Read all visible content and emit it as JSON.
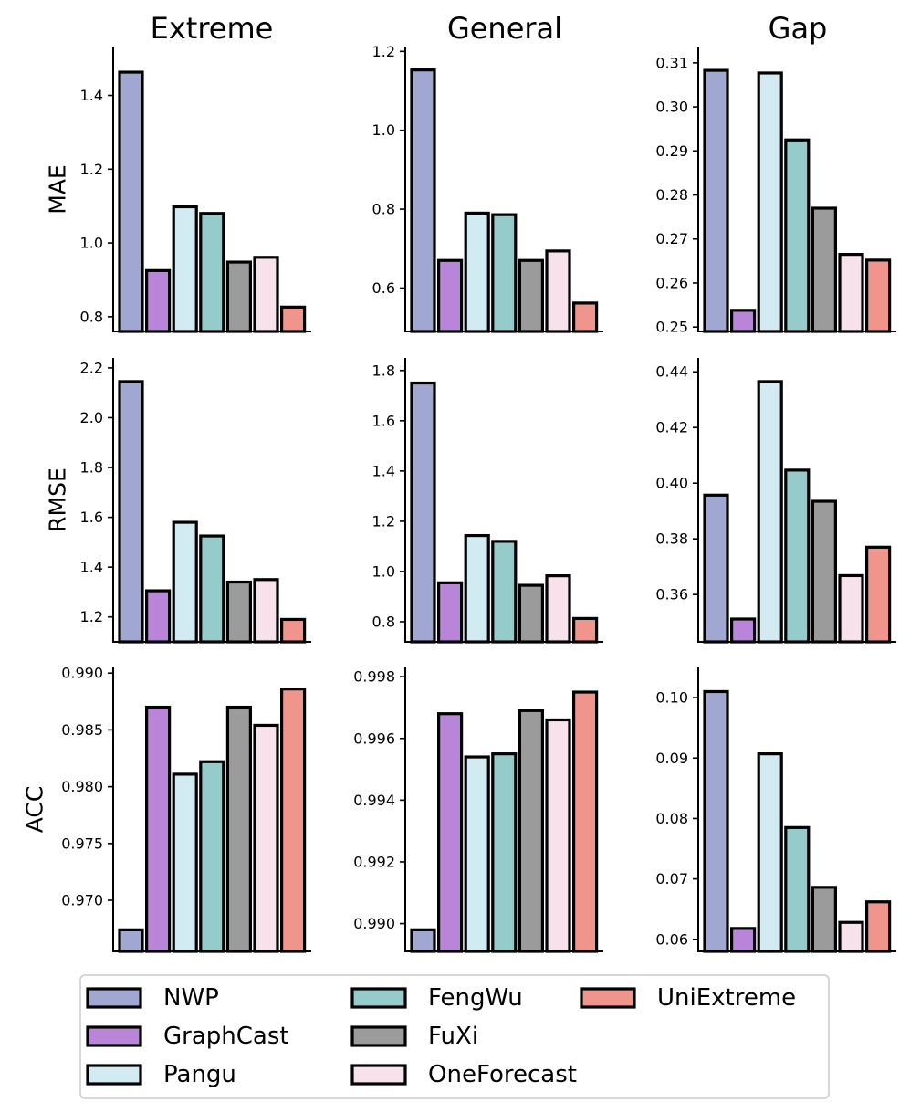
{
  "chart_data": {
    "type": "bar",
    "categories": [
      "NWP",
      "GraphCast",
      "Pangu",
      "FengWu",
      "FuXi",
      "OneForecast",
      "UniExtreme"
    ],
    "colors": [
      "#a0a8d2",
      "#b985d8",
      "#d2eaf1",
      "#95cbcb",
      "#9b9b9b",
      "#f7e2ec",
      "#ef958b"
    ],
    "columns": [
      "Extreme",
      "General",
      "Gap"
    ],
    "rows": [
      "MAE",
      "RMSE",
      "ACC"
    ],
    "legend_position": "bottom",
    "panels": [
      {
        "row": "MAE",
        "column": "Extreme",
        "ylim": [
          0.76,
          1.53
        ],
        "ticks": [
          0.8,
          1.0,
          1.2,
          1.4
        ],
        "tick_labels": [
          "0.8",
          "1.0",
          "1.2",
          "1.4"
        ],
        "values": [
          1.463,
          0.925,
          1.098,
          1.08,
          0.948,
          0.961,
          0.826
        ]
      },
      {
        "row": "MAE",
        "column": "General",
        "ylim": [
          0.49,
          1.21
        ],
        "ticks": [
          0.6,
          0.8,
          1.0,
          1.2
        ],
        "tick_labels": [
          "0.6",
          "0.8",
          "1.0",
          "1.2"
        ],
        "values": [
          1.153,
          0.67,
          0.79,
          0.786,
          0.67,
          0.694,
          0.562
        ]
      },
      {
        "row": "MAE",
        "column": "Gap",
        "ylim": [
          0.249,
          0.3135
        ],
        "ticks": [
          0.25,
          0.26,
          0.27,
          0.28,
          0.29,
          0.3,
          0.31
        ],
        "tick_labels": [
          "0.25",
          "0.26",
          "0.27",
          "0.28",
          "0.29",
          "0.30",
          "0.31"
        ],
        "values": [
          0.3083,
          0.2538,
          0.3077,
          0.2925,
          0.277,
          0.2665,
          0.2652
        ]
      },
      {
        "row": "RMSE",
        "column": "Extreme",
        "ylim": [
          1.1,
          2.24
        ],
        "ticks": [
          1.2,
          1.4,
          1.6,
          1.8,
          2.0,
          2.2
        ],
        "tick_labels": [
          "1.2",
          "1.4",
          "1.6",
          "1.8",
          "2.0",
          "2.2"
        ],
        "values": [
          2.145,
          1.305,
          1.58,
          1.525,
          1.34,
          1.35,
          1.19
        ]
      },
      {
        "row": "RMSE",
        "column": "General",
        "ylim": [
          0.72,
          1.85
        ],
        "ticks": [
          0.8,
          1.0,
          1.2,
          1.4,
          1.6,
          1.8
        ],
        "tick_labels": [
          "0.8",
          "1.0",
          "1.2",
          "1.4",
          "1.6",
          "1.8"
        ],
        "values": [
          1.75,
          0.955,
          1.143,
          1.12,
          0.945,
          0.983,
          0.813
        ]
      },
      {
        "row": "RMSE",
        "column": "Gap",
        "ylim": [
          0.343,
          0.445
        ],
        "ticks": [
          0.36,
          0.38,
          0.4,
          0.42,
          0.44
        ],
        "tick_labels": [
          "0.36",
          "0.38",
          "0.40",
          "0.42",
          "0.44"
        ],
        "values": [
          0.3957,
          0.3512,
          0.4365,
          0.4047,
          0.3935,
          0.3668,
          0.377
        ]
      },
      {
        "row": "ACC",
        "column": "Extreme",
        "ylim": [
          0.9655,
          0.9905
        ],
        "ticks": [
          0.97,
          0.975,
          0.98,
          0.985,
          0.99
        ],
        "tick_labels": [
          "0.970",
          "0.975",
          "0.980",
          "0.985",
          "0.990"
        ],
        "values": [
          0.9674,
          0.987,
          0.9811,
          0.9822,
          0.987,
          0.9854,
          0.9886
        ]
      },
      {
        "row": "ACC",
        "column": "General",
        "ylim": [
          0.9891,
          0.9983
        ],
        "ticks": [
          0.99,
          0.992,
          0.994,
          0.996,
          0.998
        ],
        "tick_labels": [
          "0.990",
          "0.992",
          "0.994",
          "0.996",
          "0.998"
        ],
        "values": [
          0.9898,
          0.9968,
          0.9954,
          0.9955,
          0.9969,
          0.9966,
          0.9975
        ]
      },
      {
        "row": "ACC",
        "column": "Gap",
        "ylim": [
          0.058,
          0.105
        ],
        "ticks": [
          0.06,
          0.07,
          0.08,
          0.09,
          0.1
        ],
        "tick_labels": [
          "0.06",
          "0.07",
          "0.08",
          "0.09",
          "0.10"
        ],
        "values": [
          0.101,
          0.0618,
          0.0907,
          0.0785,
          0.0686,
          0.0628,
          0.0662
        ]
      }
    ]
  }
}
